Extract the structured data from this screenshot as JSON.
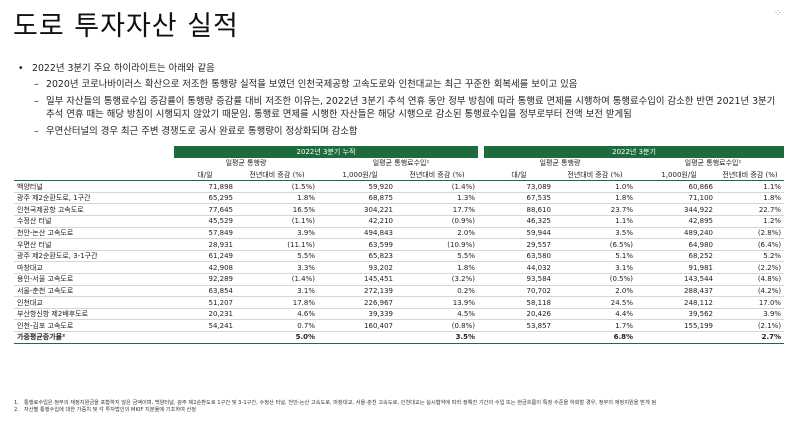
{
  "title": "도로 투자자산 실적",
  "bullets": {
    "main": "2022년 3분기 주요 하이라이트는 아래와 같음",
    "subs": [
      "2020년 코로나바이러스 확산으로 저조한 통행량 실적을 보였던 인천국제공항 고속도로와 인천대교는 최근 꾸준한 회복세를 보이고 있음",
      "일부 자산들의 통행료수입 증감률이 통행량 증감률 대비 저조한 이유는, 2022년 3분기 추석 연휴 동안 정부 방침에 따라 통행료 면제를 시행하여 통행료수입이 감소한 반면 2021년 3분기 추석 연휴 때는 해당 방침이 시행되지 않았기 때문임. 통행료 면제를 시행한 자산들은 해당 시행으로 감소된 통행료수입을 정부로부터 전액 보전 받게됨",
      "우면산터널의 경우 최근 주변 경쟁도로 공사 완료로 통행량이 정상화되며 감소함"
    ]
  },
  "table": {
    "periods": [
      "2022년 3분기 누적",
      "2022년 3분기"
    ],
    "groups": [
      "일평균 통행량",
      "일평균 통행료수입¹",
      "일평균 통행량",
      "일평균 통행료수입¹"
    ],
    "subheaders": [
      "대/일",
      "전년대비 증감 (%)",
      "1,000원/일",
      "전년대비 증감 (%)",
      "대/일",
      "전년대비 증감 (%)",
      "1,000원/일",
      "전년대비 증감 (%)"
    ],
    "rows": [
      {
        "name": "백양터널",
        "v": [
          "71,898",
          "(1.5%)",
          "59,920",
          "(1.4%)",
          "73,089",
          "1.0%",
          "60,866",
          "1.1%"
        ]
      },
      {
        "name": "광주 제2순환도로, 1구간",
        "v": [
          "65,295",
          "1.8%",
          "68,875",
          "1.3%",
          "67,535",
          "1.8%",
          "71,100",
          "1.8%"
        ]
      },
      {
        "name": "인천국제공항 고속도로",
        "v": [
          "77,645",
          "16.5%",
          "304,221",
          "17.7%",
          "88,610",
          "23.7%",
          "344,922",
          "22.7%"
        ]
      },
      {
        "name": "수정산 터널",
        "v": [
          "45,529",
          "(1.1%)",
          "42,210",
          "(0.9%)",
          "46,325",
          "1.1%",
          "42,895",
          "1.2%"
        ]
      },
      {
        "name": "천안-논산 고속도로",
        "v": [
          "57,849",
          "3.9%",
          "494,843",
          "2.0%",
          "59,944",
          "3.5%",
          "489,240",
          "(2.8%)"
        ]
      },
      {
        "name": "우면산 터널",
        "v": [
          "28,931",
          "(11.1%)",
          "63,599",
          "(10.9%)",
          "29,557",
          "(6.5%)",
          "64,980",
          "(6.4%)"
        ]
      },
      {
        "name": "광주 제2순환도로, 3-1구간",
        "v": [
          "61,249",
          "5.5%",
          "65,823",
          "5.5%",
          "63,580",
          "5.1%",
          "68,252",
          "5.2%"
        ]
      },
      {
        "name": "마창대교",
        "v": [
          "42,908",
          "3.3%",
          "93,202",
          "1.8%",
          "44,032",
          "3.1%",
          "91,981",
          "(2.2%)"
        ]
      },
      {
        "name": "용인-서울 고속도로",
        "v": [
          "92,289",
          "(1.4%)",
          "145,451",
          "(3.2%)",
          "93,584",
          "(0.5%)",
          "143,544",
          "(4.8%)"
        ]
      },
      {
        "name": "서울-춘천 고속도로",
        "v": [
          "63,854",
          "3.1%",
          "272,139",
          "0.2%",
          "70,702",
          "2.0%",
          "288,437",
          "(4.2%)"
        ]
      },
      {
        "name": "인천대교",
        "v": [
          "51,207",
          "17.8%",
          "226,967",
          "13.9%",
          "58,118",
          "24.5%",
          "248,112",
          "17.0%"
        ]
      },
      {
        "name": "부산항신항 제2배후도로",
        "v": [
          "20,231",
          "4.6%",
          "39,339",
          "4.5%",
          "20,426",
          "4.4%",
          "39,562",
          "3.9%"
        ]
      },
      {
        "name": "인천-김포 고속도로",
        "v": [
          "54,241",
          "0.7%",
          "160,407",
          "(0.8%)",
          "53,857",
          "1.7%",
          "155,199",
          "(2.1%)"
        ]
      }
    ],
    "total": {
      "name": "가중평균증가율²",
      "v": [
        "",
        "5.0%",
        "",
        "3.5%",
        "",
        "6.8%",
        "",
        "2.7%"
      ]
    }
  },
  "footnotes": [
    {
      "n": "1.",
      "text": "통행료수입은 정부의 재정지원금을 포함하지 않은 금액이며, 백양터널, 광주 제2순환도로 1구간 및 3-1구간, 수정산 터널, 천안-논산 고속도로, 마창대교, 서울-춘천 고속도로, 인천대교는 실시협약에 따라 정해진 기간의 수입 또는 현금흐름이 특정 수준을 하회할 경우, 정부의 재정지원을 받게 됨"
    },
    {
      "n": "2.",
      "text": "자산별 통행수입에 대한 가중치 및 각 투자법인의 MKIF 지분율에 기초하여 산정"
    }
  ]
}
